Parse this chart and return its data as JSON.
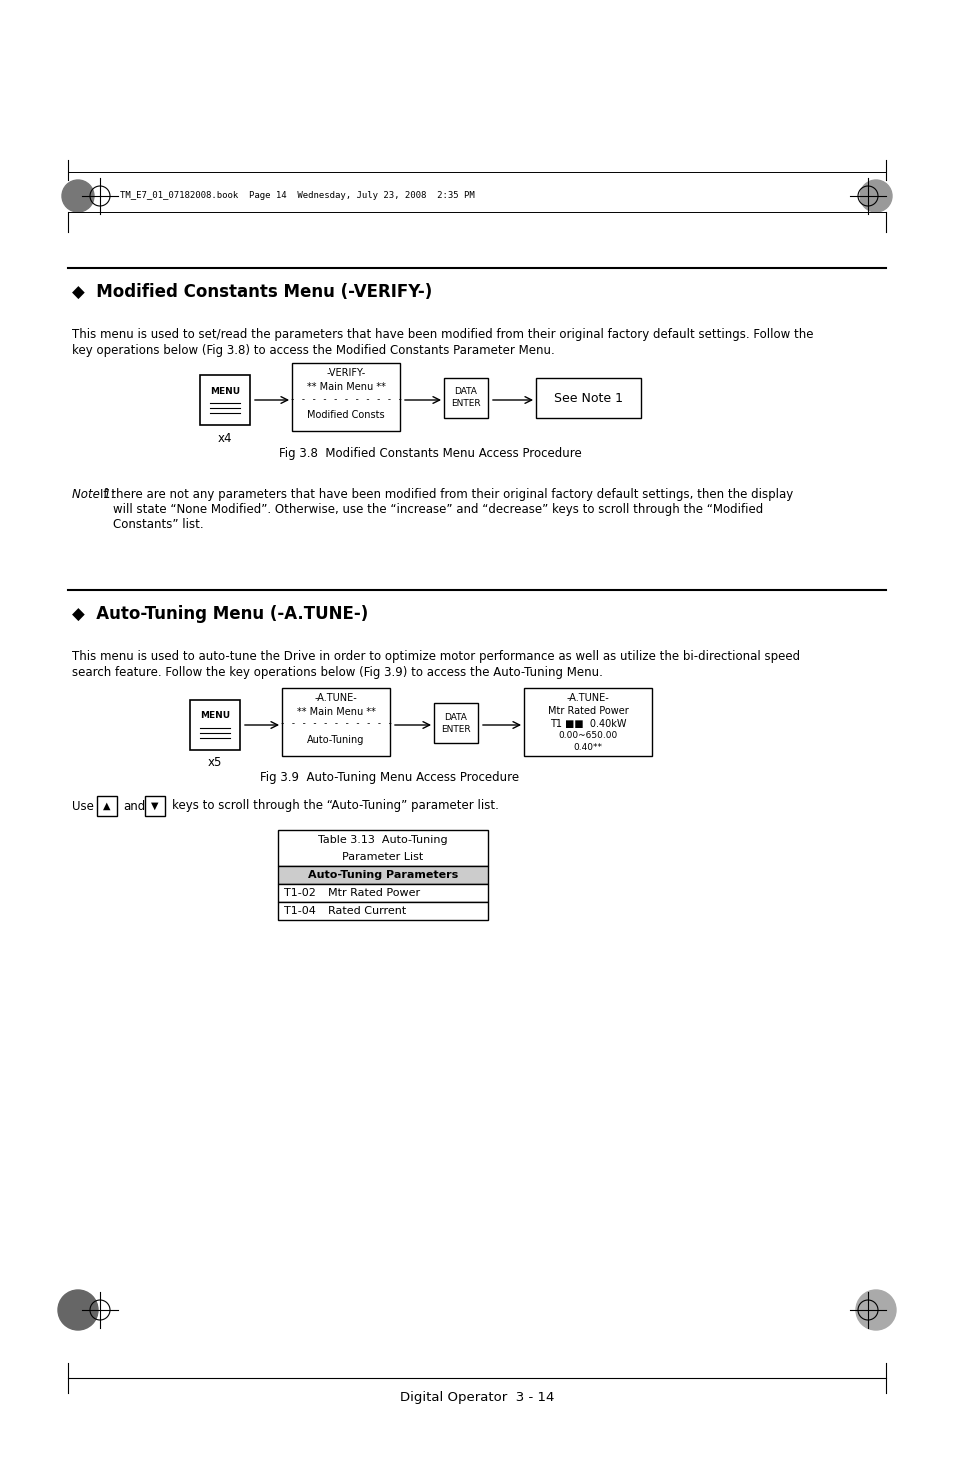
{
  "page_bg": "#ffffff",
  "header_text": "TM_E7_01_07182008.book  Page 14  Wednesday, July 23, 2008  2:35 PM",
  "section1_title": "◆  Modified Constants Menu (-VERIFY-)",
  "section1_body1": "This menu is used to set/read the parameters that have been modified from their original factory default settings. Follow the",
  "section1_body2": "key operations below (Fig 3.8) to access the Modified Constants Parameter Menu.",
  "fig1_caption": "Fig 3.8  Modified Constants Menu Access Procedure",
  "fig1_x4": "x4",
  "fig1_box2_line1": "-VERIFY-",
  "fig1_box2_line2": "** Main Menu **",
  "fig1_box2_line3": "- - - - - - - - - - -",
  "fig1_box2_line4": "Modified Consts",
  "fig1_see_note": "See Note 1",
  "note1_label": "Note 1:",
  "note1_body1": "If there are not any parameters that have been modified from their original factory default settings, then the display",
  "note1_body2": "will state “None Modified”. Otherwise, use the “increase” and “decrease” keys to scroll through the “Modified",
  "note1_body3": "Constants” list.",
  "section2_title": "◆  Auto-Tuning Menu (-A.TUNE-)",
  "section2_body1": "This menu is used to auto-tune the Drive in order to optimize motor performance as well as utilize the bi-directional speed",
  "section2_body2": "search feature. Follow the key operations below (Fig 3.9) to access the Auto-Tuning Menu.",
  "fig2_caption": "Fig 3.9  Auto-Tuning Menu Access Procedure",
  "fig2_x5": "x5",
  "fig2_box2_line1": "-A.TUNE-",
  "fig2_box2_line2": "** Main Menu **",
  "fig2_box2_line3": "- - - - - - - - - - -",
  "fig2_box2_line4": "Auto-Tuning",
  "fig2_box4_line1": "-A.TUNE-",
  "fig2_box4_line2": "Mtr Rated Power",
  "fig2_box4_line3": "T1 ■■  0.40kW",
  "fig2_box4_line4": "0.00~650.00",
  "fig2_box4_line5": "0.40**",
  "use_text": "Use",
  "and_text": "and",
  "keys_text": "keys to scroll through the “Auto-Tuning” parameter list.",
  "table_title1": "Table 3.13  Auto-Tuning",
  "table_title2": "Parameter List",
  "table_header": "Auto-Tuning Parameters",
  "table_row1_code": "T1-02",
  "table_row1_desc": "Mtr Rated Power",
  "table_row2_code": "T1-04",
  "table_row2_desc": "Rated Current",
  "footer_text": "Digital Operator  3 - 14"
}
